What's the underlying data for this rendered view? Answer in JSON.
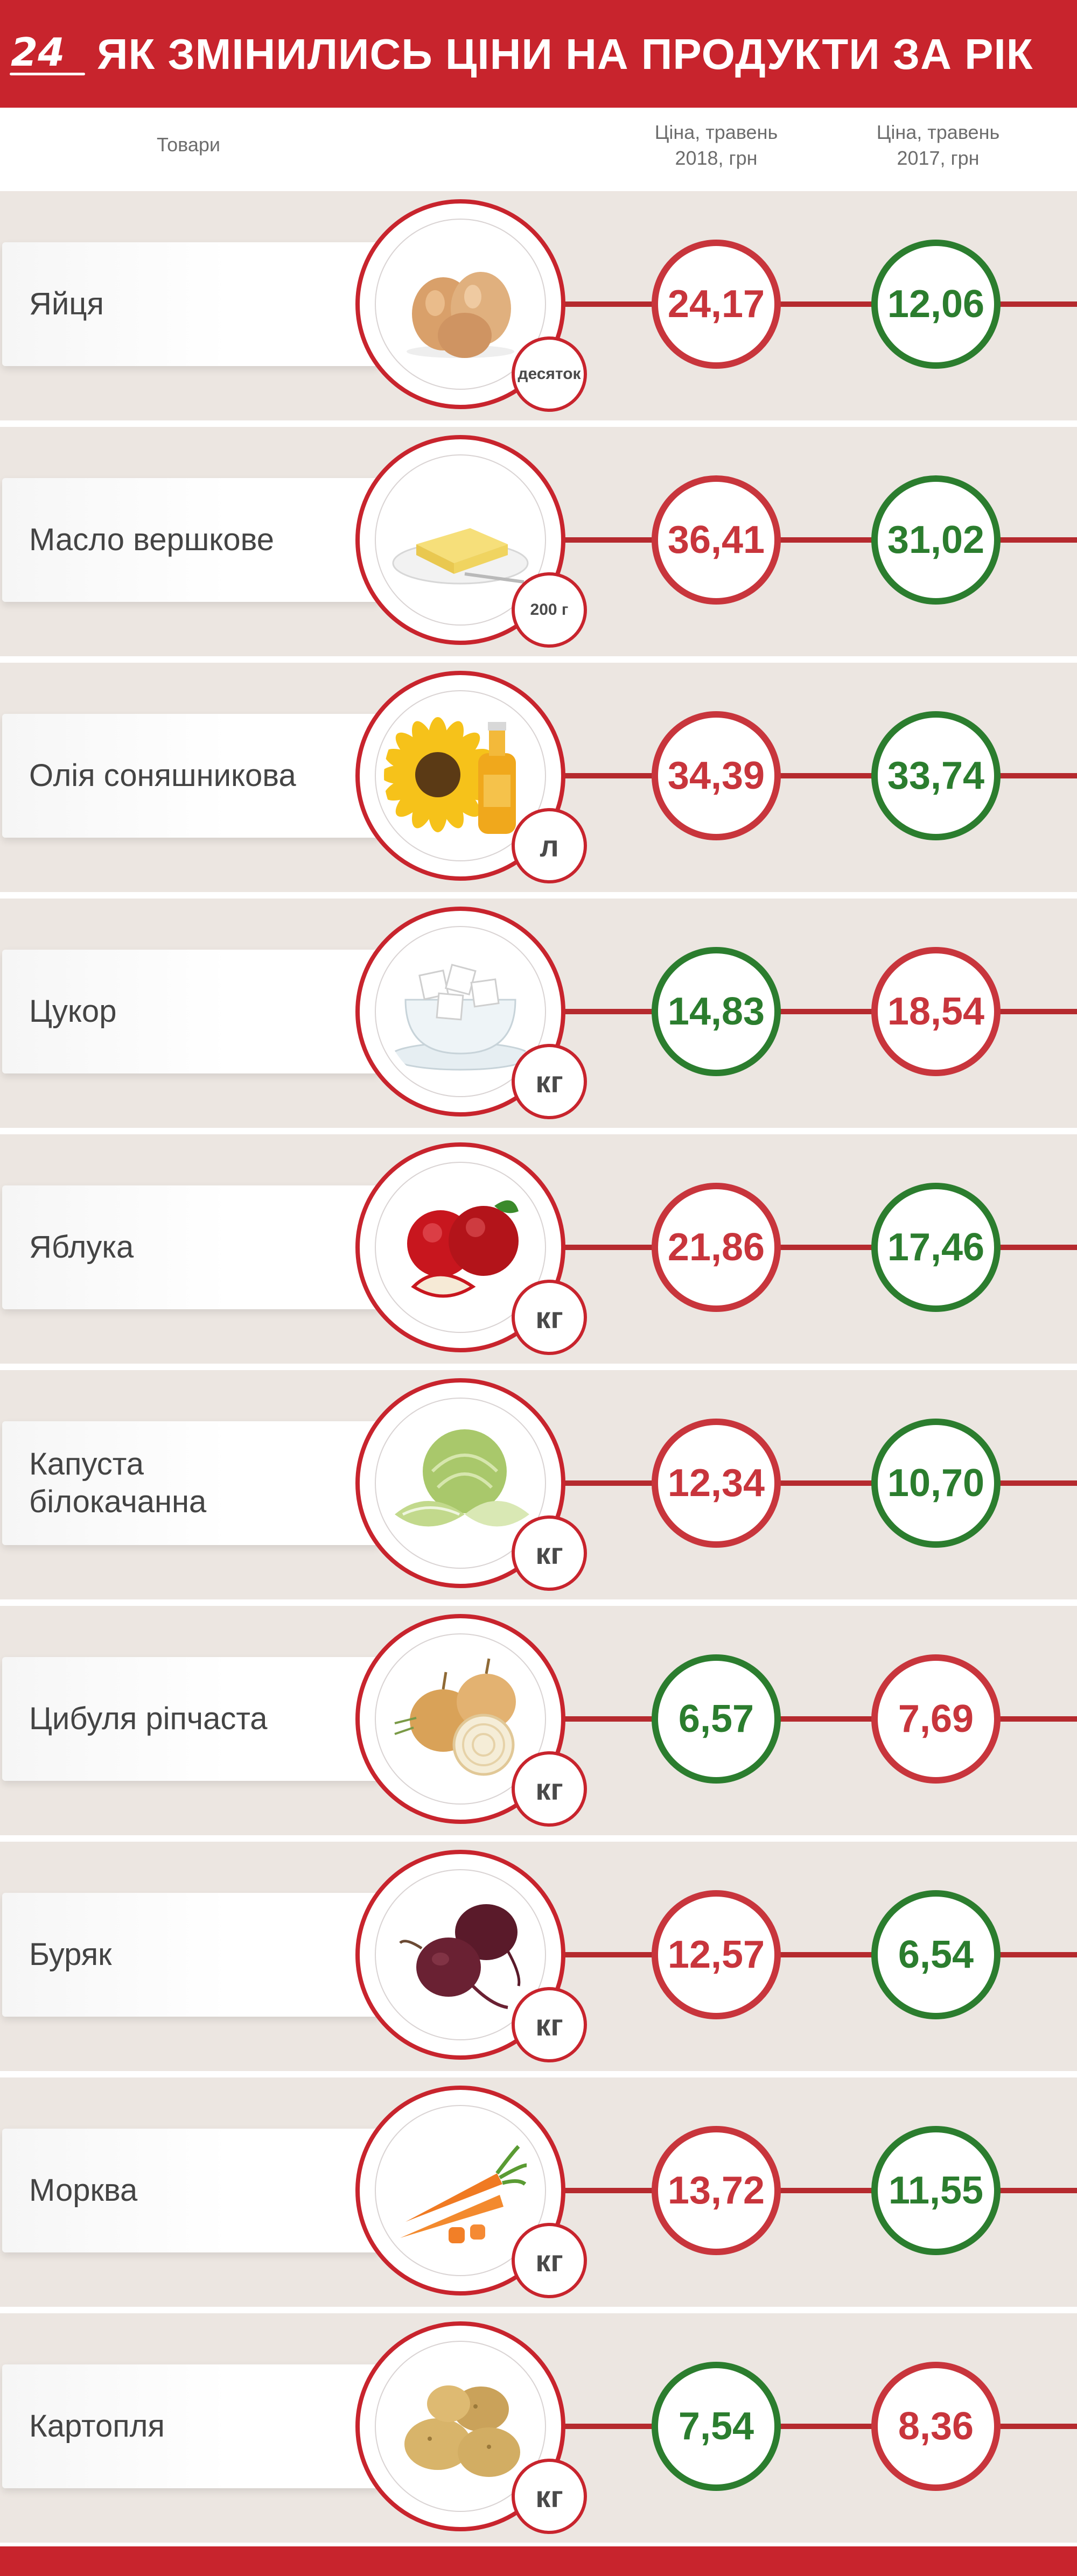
{
  "header": {
    "logo": "24",
    "title": "ЯК ЗМІНИЛИСЬ ЦІНИ НА ПРОДУКТИ ЗА РІК"
  },
  "columns": {
    "products": "Товари",
    "price_2018": "Ціна, травень\n2018, грн",
    "price_2018_line1": "Ціна, травень",
    "price_2018_line2": "2018, грн",
    "price_2017_line1": "Ціна, травень",
    "price_2017_line2": "2017, грн"
  },
  "colors": {
    "accent": "#c8242d",
    "price_up": "#c8353c",
    "price_down": "#2b7d2e",
    "row_bg": "#ece6e1"
  },
  "products": [
    {
      "name": "Яйця",
      "unit": "десяток",
      "icon": "eggs-icon",
      "price_2018": "24,17",
      "price_2017": "12,06",
      "color_2018": "red",
      "color_2017": "green"
    },
    {
      "name": "Масло вершкове",
      "unit": "200 г",
      "icon": "butter-icon",
      "price_2018": "36,41",
      "price_2017": "31,02",
      "color_2018": "red",
      "color_2017": "green"
    },
    {
      "name": "Олія соняшникова",
      "unit": "л",
      "icon": "sunflower-oil-icon",
      "price_2018": "34,39",
      "price_2017": "33,74",
      "color_2018": "red",
      "color_2017": "green"
    },
    {
      "name": "Цукор",
      "unit": "кг",
      "icon": "sugar-icon",
      "price_2018": "14,83",
      "price_2017": "18,54",
      "color_2018": "green",
      "color_2017": "red"
    },
    {
      "name": "Яблука",
      "unit": "кг",
      "icon": "apples-icon",
      "price_2018": "21,86",
      "price_2017": "17,46",
      "color_2018": "red",
      "color_2017": "green"
    },
    {
      "name": "Капуста білокачанна",
      "name_line1": "Капуста",
      "name_line2": "білокачанна",
      "unit": "кг",
      "icon": "cabbage-icon",
      "price_2018": "12,34",
      "price_2017": "10,70",
      "color_2018": "red",
      "color_2017": "green"
    },
    {
      "name": "Цибуля ріпчаста",
      "unit": "кг",
      "icon": "onion-icon",
      "price_2018": "6,57",
      "price_2017": "7,69",
      "color_2018": "green",
      "color_2017": "red"
    },
    {
      "name": "Буряк",
      "unit": "кг",
      "icon": "beet-icon",
      "price_2018": "12,57",
      "price_2017": "6,54",
      "color_2018": "red",
      "color_2017": "green"
    },
    {
      "name": "Морква",
      "unit": "кг",
      "icon": "carrot-icon",
      "price_2018": "13,72",
      "price_2017": "11,55",
      "color_2018": "red",
      "color_2017": "green"
    },
    {
      "name": "Картопля",
      "unit": "кг",
      "icon": "potato-icon",
      "price_2018": "7,54",
      "price_2017": "8,36",
      "color_2018": "green",
      "color_2017": "red"
    }
  ]
}
